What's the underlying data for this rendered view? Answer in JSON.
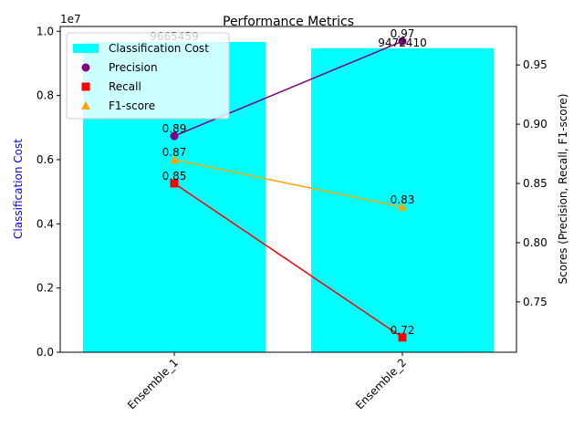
{
  "chart_data": {
    "type": "bar",
    "title": "Performance Metrics",
    "categories": [
      "Ensemble_1",
      "Ensemble_2"
    ],
    "bars": {
      "name": "Classification Cost",
      "values": [
        9665459,
        9472410
      ],
      "labels": [
        "9665459",
        "9472410"
      ],
      "color": "#00ffff"
    },
    "series": [
      {
        "name": "Precision",
        "values": [
          0.89,
          0.97
        ],
        "labels": [
          "0.89",
          "0.97"
        ],
        "color": "#800080",
        "marker": "circle"
      },
      {
        "name": "Recall",
        "values": [
          0.85,
          0.72
        ],
        "labels": [
          "0.85",
          "0.72"
        ],
        "color": "#ff0000",
        "marker": "square"
      },
      {
        "name": "F1-score",
        "values": [
          0.87,
          0.83
        ],
        "labels": [
          "0.87",
          "0.83"
        ],
        "color": "#ffa500",
        "marker": "triangle"
      }
    ],
    "y_left": {
      "label": "Classification Cost",
      "label_color": "#0000ff",
      "range": [
        0,
        10150000
      ],
      "ticks": [
        0,
        2000000,
        4000000,
        6000000,
        8000000,
        10000000
      ],
      "tick_labels": [
        "0.0",
        "0.2",
        "0.4",
        "0.6",
        "0.8",
        "1.0"
      ],
      "offset_label": "1e7"
    },
    "y_right": {
      "label": "Scores (Precision, Recall, F1-score)",
      "range": [
        0.7075,
        0.9825
      ],
      "ticks": [
        0.75,
        0.8,
        0.85,
        0.9,
        0.95
      ],
      "tick_labels": [
        "0.75",
        "0.80",
        "0.85",
        "0.90",
        "0.95"
      ]
    },
    "legend_position": "top-left",
    "grid": false
  }
}
